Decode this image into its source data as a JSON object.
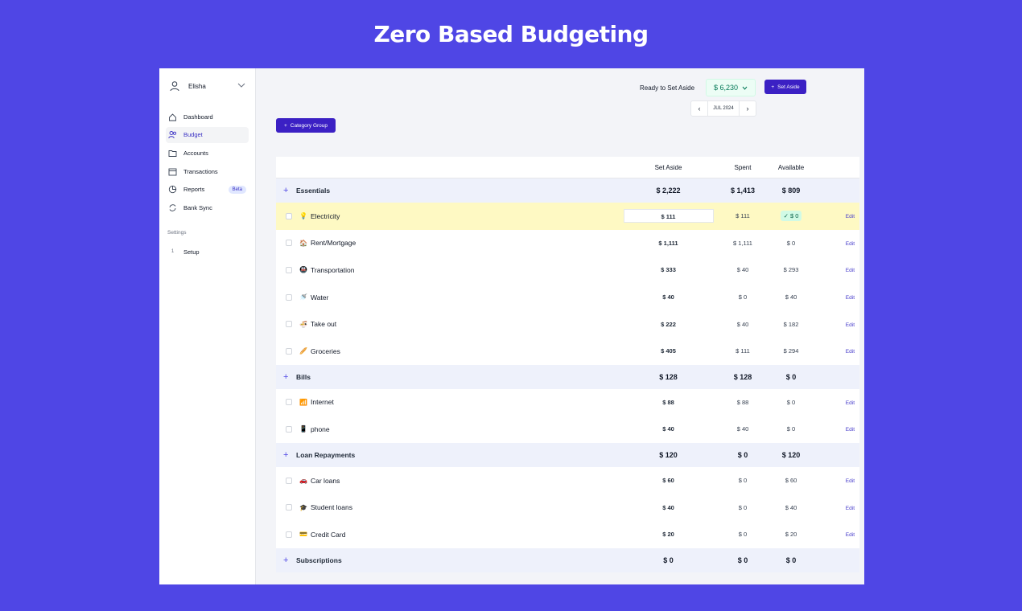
{
  "hero": {
    "title": "Zero Based Budgeting"
  },
  "sidebar": {
    "user_name": "Elisha",
    "nav": [
      {
        "label": "Dashboard",
        "icon": "home-icon"
      },
      {
        "label": "Budget",
        "icon": "users-icon",
        "active": true
      },
      {
        "label": "Accounts",
        "icon": "folder-icon"
      },
      {
        "label": "Transactions",
        "icon": "calendar-icon"
      },
      {
        "label": "Reports",
        "icon": "pie-chart-icon",
        "badge": "Beta"
      },
      {
        "label": "Bank Sync",
        "icon": "sync-icon"
      }
    ],
    "settings_label": "Settings",
    "setup": {
      "num": "1",
      "label": "Setup"
    }
  },
  "header": {
    "ready_label": "Ready to Set Aside",
    "ready_value": "$ 6,230",
    "set_aside_button": "Set Aside",
    "month": "JUL 2024",
    "category_group_button": "Category Group"
  },
  "table": {
    "headers": {
      "set_aside": "Set Aside",
      "spent": "Spent",
      "available": "Available"
    },
    "edit_label": "Edit",
    "groups": [
      {
        "name": "Essentials",
        "set_aside": "$ 2,222",
        "spent": "$ 1,413",
        "available": "$ 809",
        "items": [
          {
            "emoji": "💡",
            "name": "Electricity",
            "set_aside": "$ 111",
            "spent": "$ 111",
            "available": "$ 0"
          },
          {
            "emoji": "🏠",
            "name": "Rent/Mortgage",
            "set_aside": "$ 1,111",
            "spent": "$ 1,111",
            "available": "$ 0"
          },
          {
            "emoji": "🚇",
            "name": "Transportation",
            "set_aside": "$ 333",
            "spent": "$ 40",
            "available": "$ 293"
          },
          {
            "emoji": "🚿",
            "name": "Water",
            "set_aside": "$ 40",
            "spent": "$ 0",
            "available": "$ 40"
          },
          {
            "emoji": "🍜",
            "name": "Take out",
            "set_aside": "$ 222",
            "spent": "$ 40",
            "available": "$ 182"
          },
          {
            "emoji": "🥖",
            "name": "Groceries",
            "set_aside": "$ 405",
            "spent": "$ 111",
            "available": "$ 294"
          }
        ]
      },
      {
        "name": "Bills",
        "set_aside": "$ 128",
        "spent": "$ 128",
        "available": "$ 0",
        "items": [
          {
            "emoji": "📶",
            "name": "Internet",
            "set_aside": "$ 88",
            "spent": "$ 88",
            "available": "$ 0"
          },
          {
            "emoji": "📱",
            "name": "phone",
            "set_aside": "$ 40",
            "spent": "$ 40",
            "available": "$ 0"
          }
        ]
      },
      {
        "name": "Loan Repayments",
        "set_aside": "$ 120",
        "spent": "$ 0",
        "available": "$ 120",
        "items": [
          {
            "emoji": "🚗",
            "name": "Car loans",
            "set_aside": "$ 60",
            "spent": "$ 0",
            "available": "$ 60"
          },
          {
            "emoji": "🎓",
            "name": "Student loans",
            "set_aside": "$ 40",
            "spent": "$ 0",
            "available": "$ 40"
          },
          {
            "emoji": "💳",
            "name": "Credit Card",
            "set_aside": "$ 20",
            "spent": "$ 0",
            "available": "$ 20"
          }
        ]
      },
      {
        "name": "Subscriptions",
        "set_aside": "$ 0",
        "spent": "$ 0",
        "available": "$ 0",
        "items": []
      }
    ]
  },
  "colors": {
    "accent": "#3b20c4",
    "background": "#4f46e5",
    "highlight": "#fef9c3",
    "positive": "#047857"
  }
}
